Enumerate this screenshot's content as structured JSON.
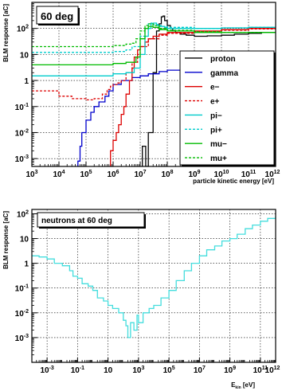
{
  "chart_data": [
    {
      "type": "line",
      "title": "60 deg",
      "xlabel": "particle kinetic energy [eV]",
      "ylabel": "BLM response [aC]",
      "x_scale": "log",
      "y_scale": "log",
      "xlim": [
        1000.0,
        1000000000000.0
      ],
      "ylim": [
        0.0005,
        1000.0
      ],
      "x_ticks": [
        {
          "v": 1000.0,
          "b": "10",
          "e": "3"
        },
        {
          "v": 10000.0,
          "b": "10",
          "e": "4"
        },
        {
          "v": 100000.0,
          "b": "10",
          "e": "5"
        },
        {
          "v": 1000000.0,
          "b": "10",
          "e": "6"
        },
        {
          "v": 10000000.0,
          "b": "10",
          "e": "7"
        },
        {
          "v": 100000000.0,
          "b": "10",
          "e": "8"
        },
        {
          "v": 1000000000.0,
          "b": "10",
          "e": "9"
        },
        {
          "v": 10000000000.0,
          "b": "10",
          "e": "10"
        },
        {
          "v": 100000000000.0,
          "b": "10",
          "e": "11"
        },
        {
          "v": 1000000000000.0,
          "b": "10",
          "e": "12"
        }
      ],
      "y_ticks": [
        {
          "v": 0.001,
          "b": "10",
          "e": "-3"
        },
        {
          "v": 0.01,
          "b": "10",
          "e": "-2"
        },
        {
          "v": 0.1,
          "b": "10",
          "e": "-1"
        },
        {
          "v": 1,
          "b": "1",
          "e": ""
        },
        {
          "v": 10,
          "b": "10",
          "e": ""
        },
        {
          "v": 100,
          "b": "10",
          "e": "2"
        }
      ],
      "grid": true,
      "legend_position": "bottom-right",
      "series": [
        {
          "name": "proton",
          "color": "#000000",
          "dash": "solid",
          "x": [
            12000000.0,
            12000000.0,
            16000000.0,
            16000000.0,
            20000000.0,
            20000000.0,
            30000000.0,
            30000000.0,
            40000000.0,
            40000000.0,
            50000000.0,
            50000000.0,
            60000000.0,
            60000000.0,
            70000000.0,
            80000000.0,
            100000000.0,
            130000000.0,
            160000000.0,
            200000000.0,
            300000000.0,
            500000000.0,
            1000000000.0,
            3000000000.0,
            10000000000.0,
            30000000000.0,
            100000000000.0,
            300000000000.0,
            1000000000000.0
          ],
          "y": [
            0.0005,
            0.003,
            0.003,
            0.0005,
            0.0005,
            0.01,
            0.01,
            2,
            2,
            80,
            80,
            150,
            150,
            280,
            300,
            200,
            130,
            100,
            80,
            70,
            60,
            55,
            50,
            52,
            55,
            60,
            65,
            70,
            75
          ]
        },
        {
          "name": "gamma",
          "color": "#0000cc",
          "dash": "solid",
          "x": [
            50000.0,
            50000.0,
            60000.0,
            70000.0,
            100000.0,
            150000.0,
            200000.0,
            300000.0,
            500000.0,
            700000.0,
            1000000.0,
            2000000.0,
            5000000.0,
            10000000.0,
            20000000.0,
            50000000.0,
            100000000.0,
            1000000000.0,
            10000000000.0,
            100000000000.0,
            1000000000000.0
          ],
          "y": [
            0.0005,
            0.0008,
            0.003,
            0.01,
            0.03,
            0.06,
            0.1,
            0.15,
            0.25,
            0.4,
            0.7,
            1.0,
            1.3,
            1.5,
            1.8,
            2.2,
            2.5,
            3,
            4,
            4.5,
            5
          ]
        },
        {
          "name": "e−",
          "color": "#dd0000",
          "dash": "solid",
          "x": [
            800000.0,
            800000.0,
            1000000.0,
            1300000.0,
            1600000.0,
            2000000.0,
            2500000.0,
            3000000.0,
            4000000.0,
            5000000.0,
            6000000.0,
            8000000.0,
            10000000.0,
            15000000.0,
            20000000.0,
            30000000.0,
            50000000.0,
            100000000.0,
            1000000000.0,
            10000000000.0,
            100000000000.0,
            1000000000000.0
          ],
          "y": [
            0.0005,
            0.002,
            0.005,
            0.01,
            0.02,
            0.05,
            0.1,
            0.3,
            1,
            3,
            8,
            15,
            20,
            30,
            40,
            50,
            60,
            70,
            80,
            90,
            100,
            100
          ]
        },
        {
          "name": "e+",
          "color": "#dd0000",
          "dash": "dashed",
          "x": [
            1000.0,
            10000.0,
            30000.0,
            100000.0,
            200000.0,
            400000.0,
            600000.0,
            800000.0,
            1000000.0,
            1500000.0,
            2000000.0,
            3000000.0,
            5000000.0,
            8000000.0,
            10000000.0,
            20000000.0,
            50000000.0,
            100000000.0,
            1000000000.0,
            10000000000.0,
            100000000000.0,
            1000000000000.0
          ],
          "y": [
            0.4,
            0.25,
            0.2,
            0.18,
            0.2,
            0.3,
            0.45,
            0.6,
            0.7,
            0.8,
            1,
            2,
            5,
            10,
            20,
            40,
            55,
            65,
            75,
            85,
            95,
            100
          ]
        },
        {
          "name": "pi−",
          "color": "#00cccc",
          "dash": "solid",
          "x": [
            1000.0,
            10000.0,
            100000.0,
            1000000.0,
            3000000.0,
            6000000.0,
            10000000.0,
            15000000.0,
            20000000.0,
            25000000.0,
            30000000.0,
            40000000.0,
            60000000.0,
            80000000.0,
            100000000.0,
            200000000.0,
            500000000.0,
            1000000000.0,
            10000000000.0,
            100000000000.0,
            1000000000000.0
          ],
          "y": [
            1.5,
            1.5,
            1.5,
            1.8,
            2,
            3,
            10,
            50,
            100,
            150,
            160,
            130,
            120,
            110,
            100,
            100,
            100,
            100,
            105,
            110,
            115
          ]
        },
        {
          "name": "pi+",
          "color": "#00cccc",
          "dash": "dashed",
          "x": [
            1000.0,
            100000.0,
            1000000.0,
            3000000.0,
            5000000.0,
            10000000.0,
            15000000.0,
            20000000.0,
            25000000.0,
            30000000.0,
            50000000.0,
            100000000.0,
            1000000000.0,
            10000000000.0,
            100000000000.0,
            1000000000000.0
          ],
          "y": [
            12,
            12,
            13,
            15,
            20,
            50,
            100,
            150,
            160,
            140,
            120,
            110,
            100,
            105,
            110,
            115
          ]
        },
        {
          "name": "mu−",
          "color": "#00bb00",
          "dash": "solid",
          "x": [
            1000.0,
            10000.0,
            100000.0,
            1000000.0,
            3000000.0,
            5000000.0,
            7000000.0,
            10000000.0,
            15000000.0,
            20000000.0,
            30000000.0,
            50000000.0,
            100000000.0,
            1000000000.0,
            10000000000.0,
            100000000000.0,
            1000000000000.0
          ],
          "y": [
            4,
            4,
            4,
            4.5,
            5,
            5,
            8,
            40,
            100,
            120,
            110,
            90,
            80,
            70,
            70,
            70,
            70
          ]
        },
        {
          "name": "mu+",
          "color": "#00bb00",
          "dash": "dashed",
          "x": [
            1000.0,
            10000.0,
            100000.0,
            1000000.0,
            3000000.0,
            5000000.0,
            7000000.0,
            10000000.0,
            15000000.0,
            20000000.0,
            30000000.0,
            50000000.0,
            100000000.0,
            1000000000.0,
            10000000000.0,
            100000000000.0,
            1000000000000.0
          ],
          "y": [
            20,
            20,
            20,
            22,
            25,
            27,
            40,
            80,
            130,
            150,
            130,
            100,
            85,
            75,
            70,
            70,
            70
          ]
        }
      ]
    },
    {
      "type": "line",
      "title": "neutrons at 60 deg",
      "xlabel": "E",
      "xlabel_sub": "kin",
      "xlabel_tail": " [eV]",
      "ylabel": "BLM response [aC]",
      "x_scale": "log",
      "y_scale": "log",
      "xlim": [
        0.0001,
        1000000000000.0
      ],
      "ylim": [
        0.0001,
        150
      ],
      "x_ticks": [
        {
          "v": 0.001,
          "b": "10",
          "e": "-3"
        },
        {
          "v": 0.1,
          "b": "10",
          "e": "-1"
        },
        {
          "v": 10,
          "b": "10",
          "e": ""
        },
        {
          "v": 1000.0,
          "b": "10",
          "e": "3"
        },
        {
          "v": 100000.0,
          "b": "10",
          "e": "5"
        },
        {
          "v": 10000000.0,
          "b": "10",
          "e": "7"
        },
        {
          "v": 1000000000.0,
          "b": "10",
          "e": "9"
        },
        {
          "v": 100000000000.0,
          "b": "10",
          "e": "11"
        },
        {
          "v": 1000000000000.0,
          "b": "10",
          "e": "12"
        }
      ],
      "y_ticks": [
        {
          "v": 0.001,
          "b": "10",
          "e": "-3"
        },
        {
          "v": 0.01,
          "b": "10",
          "e": "-2"
        },
        {
          "v": 0.1,
          "b": "10",
          "e": "-1"
        },
        {
          "v": 1,
          "b": "1",
          "e": ""
        },
        {
          "v": 10,
          "b": "10",
          "e": ""
        },
        {
          "v": 100,
          "b": "10",
          "e": "2"
        }
      ],
      "grid": true,
      "series": [
        {
          "name": "",
          "color": "#44dddd",
          "dash": "solid",
          "x": [
            0.0001,
            0.0003,
            0.001,
            0.003,
            0.01,
            0.03,
            0.05,
            0.1,
            0.2,
            0.5,
            1,
            2,
            5,
            10,
            20,
            50,
            100,
            150,
            200,
            300,
            500,
            800,
            1000.0,
            2000.0,
            5000.0,
            10000.0,
            30000.0,
            100000.0,
            300000.0,
            1000000.0,
            3000000.0,
            10000000.0,
            30000000.0,
            100000000.0,
            300000000.0,
            1000000000.0,
            3000000000.0,
            10000000000.0,
            30000000000.0,
            100000000000.0,
            300000000000.0,
            1000000000000.0
          ],
          "y": [
            2,
            1.8,
            1.5,
            1.0,
            0.8,
            0.5,
            0.3,
            0.25,
            0.15,
            0.12,
            0.08,
            0.04,
            0.03,
            0.02,
            0.015,
            0.01,
            0.005,
            0.003,
            0.001,
            0.004,
            0.002,
            0.008,
            0.004,
            0.01,
            0.015,
            0.02,
            0.04,
            0.08,
            0.2,
            0.5,
            1.0,
            2.0,
            3.5,
            5,
            8,
            10,
            15,
            25,
            35,
            50,
            65,
            80
          ]
        }
      ]
    }
  ]
}
